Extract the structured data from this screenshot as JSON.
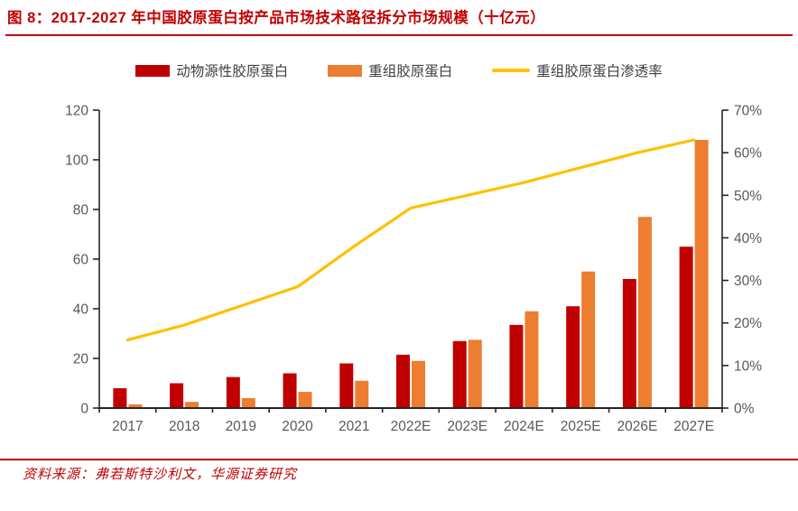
{
  "header": {
    "title": "图 8：2017-2027 年中国胶原蛋白按产品市场技术路径拆分市场规模（十亿元）"
  },
  "footer": {
    "source": "资料来源：弗若斯特沙利文，华源证券研究"
  },
  "colors": {
    "accent_red": "#c00000",
    "bar_animal": "#c00000",
    "bar_recombinant": "#ed7d31",
    "line_penetration": "#ffc000",
    "axis_label_gray": "#595959",
    "legend_text": "#3f3f3f",
    "spine": "#262626"
  },
  "chart_data": {
    "type": "bar+line combo",
    "title": "2017-2027 年中国胶原蛋白按产品市场技术路径拆分市场规模（十亿元）",
    "categories": [
      "2017",
      "2018",
      "2019",
      "2020",
      "2021",
      "2022E",
      "2023E",
      "2024E",
      "2025E",
      "2026E",
      "2027E"
    ],
    "series": [
      {
        "name": "动物源性胶原蛋白",
        "type": "bar",
        "axis": "left",
        "color": "#c00000",
        "values": [
          8,
          10,
          12.5,
          14,
          18,
          21.5,
          27,
          33.5,
          41,
          52,
          65
        ]
      },
      {
        "name": "重组胶原蛋白",
        "type": "bar",
        "axis": "left",
        "color": "#ed7d31",
        "values": [
          1.5,
          2.5,
          4,
          6.5,
          11,
          19,
          27.5,
          39,
          55,
          77,
          108
        ]
      },
      {
        "name": "重组胶原蛋白渗透率",
        "type": "line",
        "axis": "right",
        "color": "#ffc000",
        "values": [
          16,
          19.5,
          24,
          28.5,
          38,
          47,
          50,
          53,
          56.5,
          60,
          63
        ],
        "unit": "%"
      }
    ],
    "left_axis": {
      "min": 0,
      "max": 120,
      "tick_step": 20,
      "tick_labels": [
        "0",
        "20",
        "40",
        "60",
        "80",
        "100",
        "120"
      ]
    },
    "right_axis": {
      "min": 0,
      "max": 70,
      "tick_step": 10,
      "tick_labels": [
        "0%",
        "10%",
        "20%",
        "30%",
        "40%",
        "50%",
        "60%",
        "70%"
      ]
    },
    "grid": false,
    "legend_position": "top-center"
  }
}
